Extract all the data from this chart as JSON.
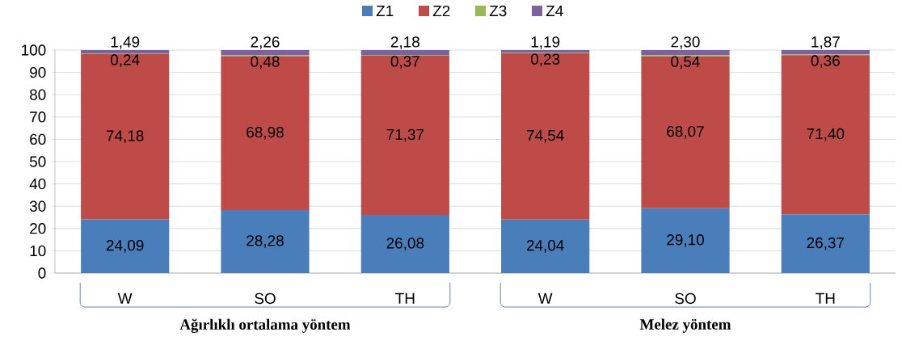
{
  "chart_data": {
    "type": "bar",
    "stacked": true,
    "categories": [
      "W",
      "SO",
      "TH",
      "W",
      "SO",
      "TH"
    ],
    "series": [
      {
        "name": "Z1",
        "color": "#4a7ebb",
        "values": [
          24.09,
          28.28,
          26.08,
          24.04,
          29.1,
          26.37
        ],
        "value_labels": [
          "24,09",
          "28,28",
          "26,08",
          "24,04",
          "29,10",
          "26,37"
        ]
      },
      {
        "name": "Z2",
        "color": "#be4b48",
        "values": [
          74.18,
          68.98,
          71.37,
          74.54,
          68.07,
          71.4
        ],
        "value_labels": [
          "74,18",
          "68,98",
          "71,37",
          "74,54",
          "68,07",
          "71,40"
        ]
      },
      {
        "name": "Z3",
        "color": "#98b954",
        "values": [
          0.24,
          0.48,
          0.37,
          0.23,
          0.54,
          0.36
        ],
        "value_labels": [
          "0,24",
          "0,48",
          "0,37",
          "0,23",
          "0,54",
          "0,36"
        ]
      },
      {
        "name": "Z4",
        "color": "#7d60a0",
        "values": [
          1.49,
          2.26,
          2.18,
          1.19,
          2.3,
          1.87
        ],
        "value_labels": [
          "1,49",
          "2,26",
          "2,18",
          "1,19",
          "2,30",
          "1,87"
        ]
      }
    ],
    "ylim": [
      0,
      100
    ],
    "yticks": [
      0,
      10,
      20,
      30,
      40,
      50,
      60,
      70,
      80,
      90,
      100
    ],
    "grid": "y",
    "legend": "top",
    "annotations": [
      "Ağırlıklı ortalama yöntem",
      "Melez yöntem"
    ]
  }
}
